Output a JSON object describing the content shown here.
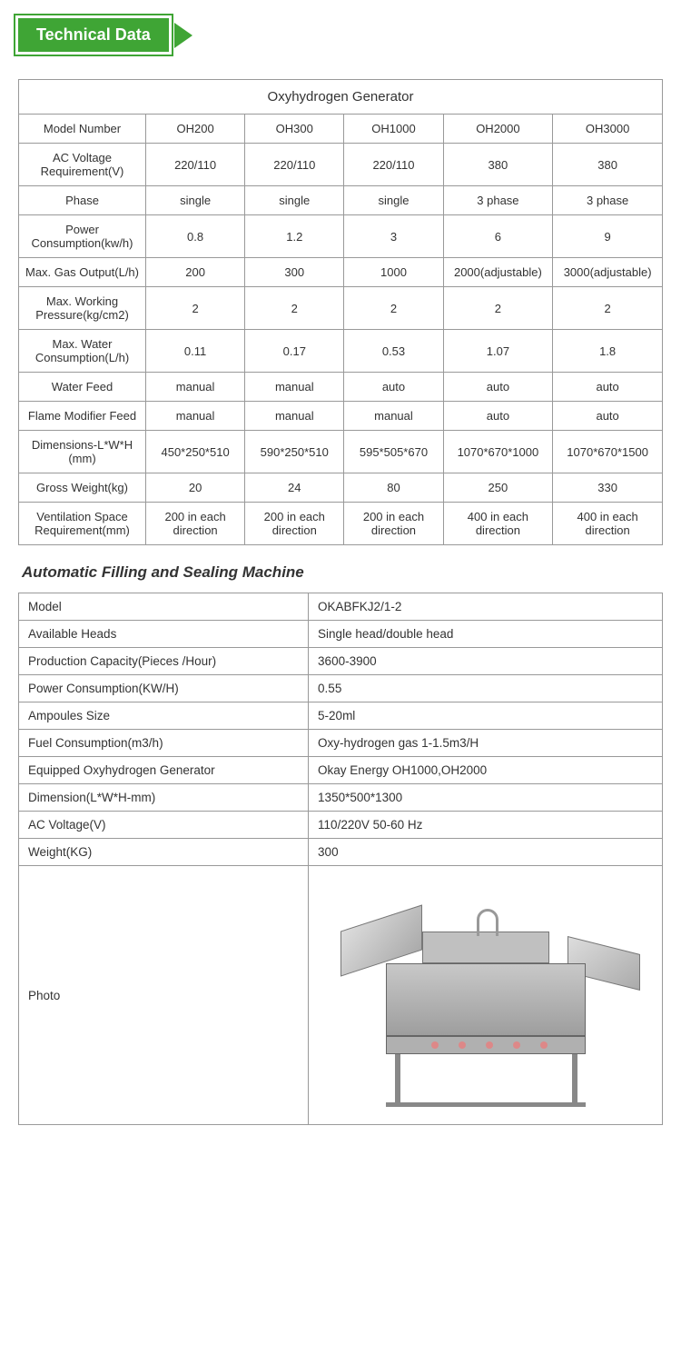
{
  "badge": "Technical Data",
  "table1": {
    "title": "Oxyhydrogen Generator",
    "columns": [
      "Model Number",
      "OH200",
      "OH300",
      "OH1000",
      "OH2000",
      "OH3000"
    ],
    "rows": [
      [
        "AC Voltage Requirement(V)",
        "220/110",
        "220/110",
        "220/110",
        "380",
        "380"
      ],
      [
        "Phase",
        "single",
        "single",
        "single",
        "3 phase",
        "3 phase"
      ],
      [
        "Power Consumption(kw/h)",
        "0.8",
        "1.2",
        "3",
        "6",
        "9"
      ],
      [
        "Max. Gas Output(L/h)",
        "200",
        "300",
        "1000",
        "2000(adjustable)",
        "3000(adjustable)"
      ],
      [
        "Max. Working Pressure(kg/cm2)",
        "2",
        "2",
        "2",
        "2",
        "2"
      ],
      [
        "Max. Water Consumption(L/h)",
        "0.11",
        "0.17",
        "0.53",
        "1.07",
        "1.8"
      ],
      [
        "Water Feed",
        "manual",
        "manual",
        "auto",
        "auto",
        "auto"
      ],
      [
        "Flame Modifier Feed",
        "manual",
        "manual",
        "manual",
        "auto",
        "auto"
      ],
      [
        "Dimensions-L*W*H (mm)",
        "450*250*510",
        "590*250*510",
        "595*505*670",
        "1070*670*1000",
        "1070*670*1500"
      ],
      [
        "Gross Weight(kg)",
        "20",
        "24",
        "80",
        "250",
        "330"
      ],
      [
        "Ventilation Space Requirement(mm)",
        "200 in each direction",
        "200 in each direction",
        "200 in each direction",
        "400 in each direction",
        "400 in each direction"
      ]
    ]
  },
  "subhead": "Automatic  Filling and Sealing Machine",
  "table2": {
    "rows": [
      [
        "Model",
        "OKABFKJ2/1-2"
      ],
      [
        "Available Heads",
        "Single head/double head"
      ],
      [
        "Production Capacity(Pieces /Hour)",
        "3600-3900"
      ],
      [
        "Power Consumption(KW/H)",
        "0.55"
      ],
      [
        "Ampoules Size",
        "5-20ml"
      ],
      [
        "Fuel Consumption(m3/h)",
        "Oxy-hydrogen gas 1-1.5m3/H"
      ],
      [
        "Equipped Oxyhydrogen Generator",
        "Okay Energy OH1000,OH2000"
      ],
      [
        "Dimension(L*W*H-mm)",
        "1350*500*1300"
      ],
      [
        "AC Voltage(V)",
        "110/220V 50-60 Hz"
      ],
      [
        "Weight(KG)",
        "300"
      ]
    ],
    "photoLabel": "Photo"
  },
  "colors": {
    "accent": "#3fa535",
    "border": "#999999",
    "text": "#333333"
  }
}
